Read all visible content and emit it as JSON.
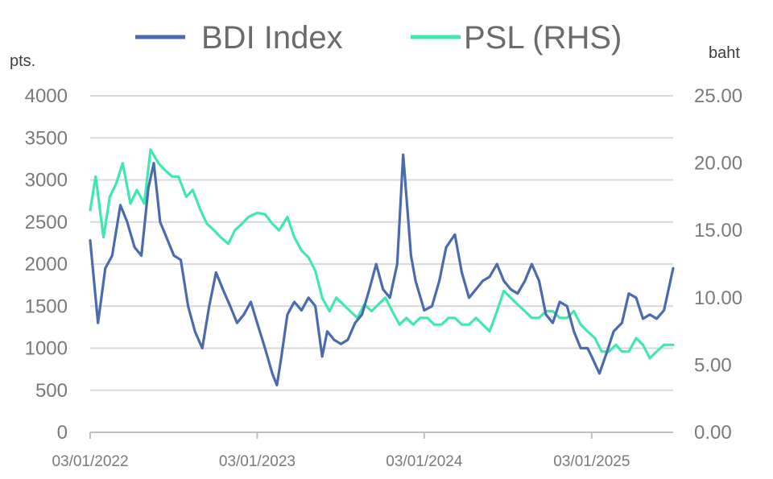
{
  "chart_data": {
    "type": "line",
    "legend": {
      "placement": "top-center",
      "entries": [
        "BDI Index",
        "PSL (RHS)"
      ]
    },
    "y_left": {
      "unit_label": "pts.",
      "min": 0,
      "max": 4000,
      "ticks": [
        "4000",
        "3500",
        "3000",
        "2500",
        "2000",
        "1500",
        "1000",
        "500",
        "0"
      ]
    },
    "y_right": {
      "unit_label": "baht",
      "min": 0,
      "max": 25,
      "ticks": [
        "25.00",
        "20.00",
        "15.00",
        "10.00",
        "5.00",
        "0.00"
      ]
    },
    "x_ticks": [
      "03/01/2022",
      "03/01/2023",
      "03/01/2024",
      "03/01/2025"
    ],
    "x_range": [
      "2022-01-03",
      "2025-06-30"
    ],
    "grid": true,
    "colors": {
      "bdi": "#4a6bb0",
      "psl": "#40e8b0",
      "grid": "#d9d9d9",
      "text": "#7a7a7a"
    },
    "series": [
      {
        "name": "BDI Index",
        "axis": "left",
        "x": [
          "2022-01-03",
          "2022-01-20",
          "2022-02-05",
          "2022-02-20",
          "2022-03-10",
          "2022-03-25",
          "2022-04-10",
          "2022-04-25",
          "2022-05-10",
          "2022-05-22",
          "2022-06-05",
          "2022-06-20",
          "2022-07-05",
          "2022-07-20",
          "2022-08-05",
          "2022-08-20",
          "2022-09-05",
          "2022-09-20",
          "2022-10-05",
          "2022-10-20",
          "2022-11-05",
          "2022-11-20",
          "2022-12-05",
          "2022-12-20",
          "2023-01-03",
          "2023-01-20",
          "2023-02-05",
          "2023-02-15",
          "2023-02-25",
          "2023-03-10",
          "2023-03-25",
          "2023-04-10",
          "2023-04-25",
          "2023-05-10",
          "2023-05-25",
          "2023-06-05",
          "2023-06-20",
          "2023-07-05",
          "2023-07-20",
          "2023-08-05",
          "2023-08-20",
          "2023-09-05",
          "2023-09-20",
          "2023-10-05",
          "2023-10-20",
          "2023-11-05",
          "2023-11-18",
          "2023-11-28",
          "2023-12-05",
          "2023-12-15",
          "2024-01-03",
          "2024-01-20",
          "2024-02-05",
          "2024-02-20",
          "2024-03-10",
          "2024-03-25",
          "2024-04-10",
          "2024-04-25",
          "2024-05-10",
          "2024-05-25",
          "2024-06-10",
          "2024-06-25",
          "2024-07-10",
          "2024-07-25",
          "2024-08-10",
          "2024-08-25",
          "2024-09-10",
          "2024-09-25",
          "2024-10-10",
          "2024-10-25",
          "2024-11-10",
          "2024-11-25",
          "2024-12-10",
          "2024-12-25",
          "2025-01-03",
          "2025-01-20",
          "2025-02-05",
          "2025-02-20",
          "2025-03-10",
          "2025-03-25",
          "2025-04-10",
          "2025-04-25",
          "2025-05-10",
          "2025-05-25",
          "2025-06-10",
          "2025-06-20",
          "2025-06-30"
        ],
        "values": [
          2280,
          1300,
          1950,
          2100,
          2700,
          2500,
          2200,
          2100,
          2900,
          3200,
          2500,
          2300,
          2100,
          2050,
          1500,
          1200,
          1000,
          1500,
          1900,
          1700,
          1500,
          1300,
          1400,
          1550,
          1300,
          1000,
          700,
          560,
          900,
          1400,
          1550,
          1450,
          1600,
          1500,
          900,
          1200,
          1100,
          1050,
          1100,
          1300,
          1400,
          1700,
          2000,
          1700,
          1600,
          2000,
          3300,
          2600,
          2100,
          1800,
          1450,
          1500,
          1800,
          2200,
          2350,
          1900,
          1600,
          1700,
          1800,
          1850,
          2000,
          1800,
          1700,
          1650,
          1800,
          2000,
          1800,
          1400,
          1300,
          1550,
          1500,
          1200,
          1000,
          1000,
          900,
          700,
          950,
          1200,
          1300,
          1650,
          1600,
          1350,
          1400,
          1350,
          1450,
          1700,
          1950
        ]
      },
      {
        "name": "PSL (RHS)",
        "axis": "right",
        "x": [
          "2022-01-03",
          "2022-01-15",
          "2022-02-01",
          "2022-02-15",
          "2022-03-01",
          "2022-03-15",
          "2022-04-01",
          "2022-04-15",
          "2022-05-01",
          "2022-05-15",
          "2022-06-01",
          "2022-06-15",
          "2022-07-01",
          "2022-07-15",
          "2022-08-01",
          "2022-08-15",
          "2022-09-01",
          "2022-09-15",
          "2022-10-01",
          "2022-10-15",
          "2022-11-01",
          "2022-11-15",
          "2022-12-01",
          "2022-12-15",
          "2023-01-03",
          "2023-01-20",
          "2023-02-05",
          "2023-02-20",
          "2023-03-10",
          "2023-03-25",
          "2023-04-10",
          "2023-04-25",
          "2023-05-10",
          "2023-05-25",
          "2023-06-10",
          "2023-06-25",
          "2023-07-10",
          "2023-07-25",
          "2023-08-10",
          "2023-08-25",
          "2023-09-10",
          "2023-09-25",
          "2023-10-10",
          "2023-10-25",
          "2023-11-10",
          "2023-11-25",
          "2023-12-10",
          "2023-12-25",
          "2024-01-10",
          "2024-01-25",
          "2024-02-10",
          "2024-02-25",
          "2024-03-10",
          "2024-03-25",
          "2024-04-10",
          "2024-04-25",
          "2024-05-10",
          "2024-05-25",
          "2024-06-10",
          "2024-06-25",
          "2024-07-10",
          "2024-07-25",
          "2024-08-10",
          "2024-08-25",
          "2024-09-10",
          "2024-09-25",
          "2024-10-10",
          "2024-10-25",
          "2024-11-10",
          "2024-11-25",
          "2024-12-10",
          "2024-12-25",
          "2025-01-10",
          "2025-01-25",
          "2025-02-10",
          "2025-02-25",
          "2025-03-10",
          "2025-03-25",
          "2025-04-10",
          "2025-04-25",
          "2025-05-10",
          "2025-05-25",
          "2025-06-10",
          "2025-06-30"
        ],
        "values": [
          16.5,
          19,
          14.5,
          17.5,
          18.5,
          20,
          17,
          18,
          17,
          21,
          20,
          19.5,
          19,
          19,
          17.5,
          18,
          16.5,
          15.5,
          15,
          14.5,
          14,
          15,
          15.5,
          16,
          16.3,
          16.2,
          15.5,
          15,
          16,
          14.5,
          13.5,
          13,
          12,
          10,
          9,
          10,
          9.5,
          9,
          8.5,
          9.5,
          9,
          9.5,
          10,
          9,
          8,
          8.5,
          8,
          8.5,
          8.5,
          8,
          8,
          8.5,
          8.5,
          8,
          8,
          8.5,
          8,
          7.5,
          9,
          10.5,
          10,
          9.5,
          9,
          8.5,
          8.5,
          9,
          9,
          8.5,
          8.5,
          9,
          8,
          7.5,
          7,
          6,
          6,
          6.5,
          6,
          6,
          7,
          6.5,
          5.5,
          6,
          6.5,
          6.5
        ]
      }
    ]
  }
}
